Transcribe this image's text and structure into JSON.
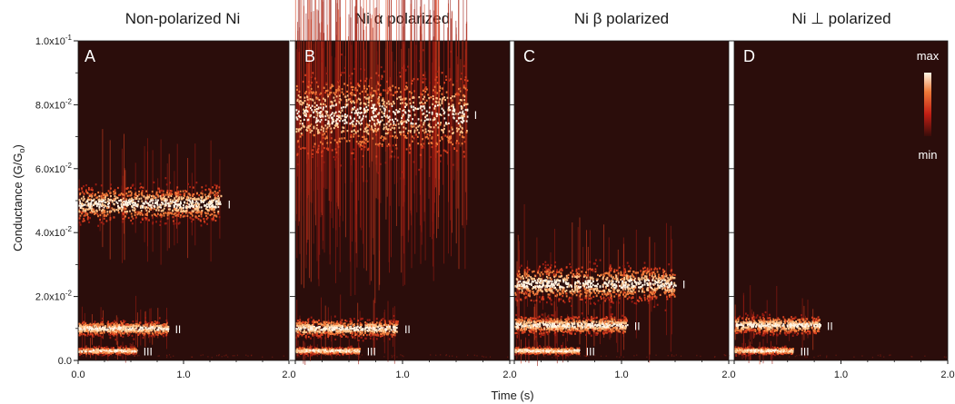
{
  "figure": {
    "ylabel": "Conductance (G/G",
    "ylabel_sub": "o",
    "ylabel_end": ")",
    "xlabel": "Time (s)",
    "colorbar": {
      "max_label": "max",
      "min_label": "min"
    },
    "y_ticks": [
      {
        "value": 0.0,
        "label": "0.0"
      },
      {
        "value": 0.02,
        "label": "2.0x10",
        "exp": "-2"
      },
      {
        "value": 0.04,
        "label": "4.0x10",
        "exp": "-2"
      },
      {
        "value": 0.06,
        "label": "6.0x10",
        "exp": "-2"
      },
      {
        "value": 0.08,
        "label": "8.0x10",
        "exp": "-2"
      },
      {
        "value": 0.1,
        "label": "1.0x10",
        "exp": "-1"
      }
    ],
    "x_ticks": [
      "0.0",
      "1.0",
      "2.0"
    ]
  },
  "chart_data": [
    {
      "type": "heatmap",
      "title": "Non-polarized Ni",
      "panel_label": "A",
      "xlim": [
        0,
        2.0
      ],
      "ylim": [
        0,
        0.1
      ],
      "bands": [
        {
          "label": "I",
          "t_start": 0.0,
          "t_end": 1.35,
          "center": 0.049,
          "spread": 0.005
        },
        {
          "label": "II",
          "t_start": 0.0,
          "t_end": 0.85,
          "center": 0.01,
          "spread": 0.002
        },
        {
          "label": "III",
          "t_start": 0.0,
          "t_end": 0.55,
          "center": 0.003,
          "spread": 0.001
        }
      ]
    },
    {
      "type": "heatmap",
      "title": "Ni α polarized",
      "panel_label": "B",
      "xlim": [
        0,
        2.0
      ],
      "ylim": [
        0,
        0.1
      ],
      "bands": [
        {
          "label": "I",
          "t_start": 0.0,
          "t_end": 1.6,
          "center": 0.077,
          "spread": 0.012
        },
        {
          "label": "II",
          "t_start": 0.0,
          "t_end": 0.95,
          "center": 0.01,
          "spread": 0.0025
        },
        {
          "label": "III",
          "t_start": 0.0,
          "t_end": 0.6,
          "center": 0.003,
          "spread": 0.001
        }
      ]
    },
    {
      "type": "heatmap",
      "title": "Ni β polarized",
      "panel_label": "C",
      "xlim": [
        0,
        2.0
      ],
      "ylim": [
        0,
        0.1
      ],
      "bands": [
        {
          "label": "I",
          "t_start": 0.0,
          "t_end": 1.5,
          "center": 0.024,
          "spread": 0.005
        },
        {
          "label": "II",
          "t_start": 0.0,
          "t_end": 1.05,
          "center": 0.011,
          "spread": 0.0025
        },
        {
          "label": "III",
          "t_start": 0.0,
          "t_end": 0.6,
          "center": 0.003,
          "spread": 0.001
        }
      ]
    },
    {
      "type": "heatmap",
      "title": "Ni ⊥ polarized",
      "panel_label": "D",
      "xlim": [
        0,
        2.0
      ],
      "ylim": [
        0,
        0.1
      ],
      "bands": [
        {
          "label": "II",
          "t_start": 0.0,
          "t_end": 0.8,
          "center": 0.011,
          "spread": 0.0025
        },
        {
          "label": "III",
          "t_start": 0.0,
          "t_end": 0.55,
          "center": 0.003,
          "spread": 0.001
        }
      ]
    }
  ],
  "colors": {
    "background": "#2b0d0b",
    "hot_low": "#8a1a10",
    "hot_mid": "#e0552a",
    "hot_high": "#fff2df"
  }
}
